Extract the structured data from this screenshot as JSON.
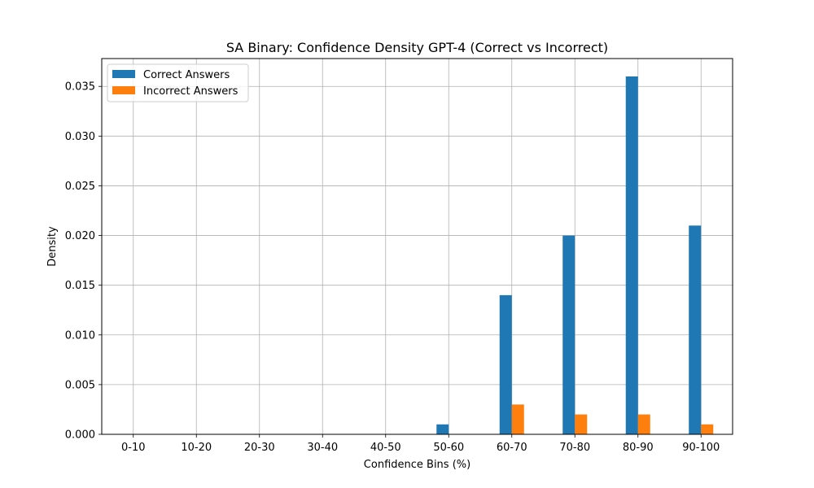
{
  "chart_data": {
    "type": "bar",
    "title": "SA Binary: Confidence Density GPT-4 (Correct vs Incorrect)",
    "xlabel": "Confidence Bins (%)",
    "ylabel": "Density",
    "categories": [
      "0-10",
      "10-20",
      "20-30",
      "30-40",
      "40-50",
      "50-60",
      "60-70",
      "70-80",
      "80-90",
      "90-100"
    ],
    "ylim": [
      0,
      0.0378
    ],
    "yticks": [
      "0.000",
      "0.005",
      "0.010",
      "0.015",
      "0.020",
      "0.025",
      "0.030",
      "0.035"
    ],
    "grid": true,
    "legend_position": "top-left",
    "series": [
      {
        "name": "Correct Answers",
        "color": "#1f77b4",
        "values": [
          0,
          0,
          0,
          0,
          0,
          0.001,
          0.014,
          0.02,
          0.036,
          0.021
        ]
      },
      {
        "name": "Incorrect Answers",
        "color": "#ff7f0e",
        "values": [
          0,
          0,
          0,
          0,
          0,
          0,
          0.003,
          0.002,
          0.002,
          0.001
        ]
      }
    ]
  }
}
